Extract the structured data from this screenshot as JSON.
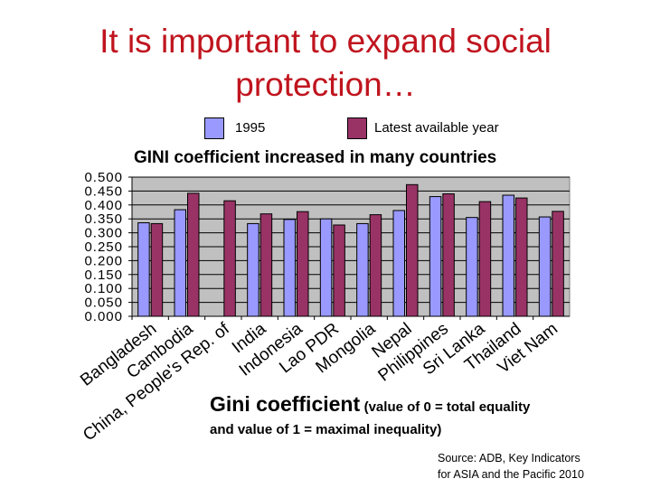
{
  "slide": {
    "title_line1": "It is important to expand social",
    "title_line2": "protection…"
  },
  "legend": {
    "item1": "1995",
    "item2": "Latest available year"
  },
  "chart_heading": "GINI coefficient increased in many countries",
  "caption": {
    "main": "Gini coefficient",
    "paren": "(value of 0 = total equality",
    "line2": "and value of 1 = maximal inequality)"
  },
  "source": {
    "line1": "Source: ADB, Key Indicators",
    "line2": "for ASIA and the Pacific 2010"
  },
  "colors": {
    "title": "#c0141e",
    "series1": "#9999ff",
    "series2": "#993366",
    "plot_bg": "#c0c0c0"
  },
  "chart_data": {
    "type": "bar",
    "title": "GINI coefficient increased in many countries",
    "xlabel": "",
    "ylabel": "",
    "ylim": [
      0,
      0.5
    ],
    "yticks": [
      "0.000",
      "0.050",
      "0.100",
      "0.150",
      "0.200",
      "0.250",
      "0.300",
      "0.350",
      "0.400",
      "0.450",
      "0.500"
    ],
    "categories": [
      "Bangladesh",
      "Cambodia",
      "China, People's Rep. of",
      "India",
      "Indonesia",
      "Lao PDR",
      "Mongolia",
      "Nepal",
      "Philippines",
      "Sri Lanka",
      "Thailand",
      "Viet Nam"
    ],
    "series": [
      {
        "name": "1995",
        "values": [
          0.336,
          0.383,
          null,
          0.333,
          0.348,
          0.35,
          0.333,
          0.38,
          0.43,
          0.355,
          0.435,
          0.357
        ]
      },
      {
        "name": "Latest available year",
        "values": [
          0.333,
          0.442,
          0.415,
          0.368,
          0.376,
          0.328,
          0.365,
          0.473,
          0.44,
          0.412,
          0.425,
          0.377
        ]
      }
    ]
  }
}
